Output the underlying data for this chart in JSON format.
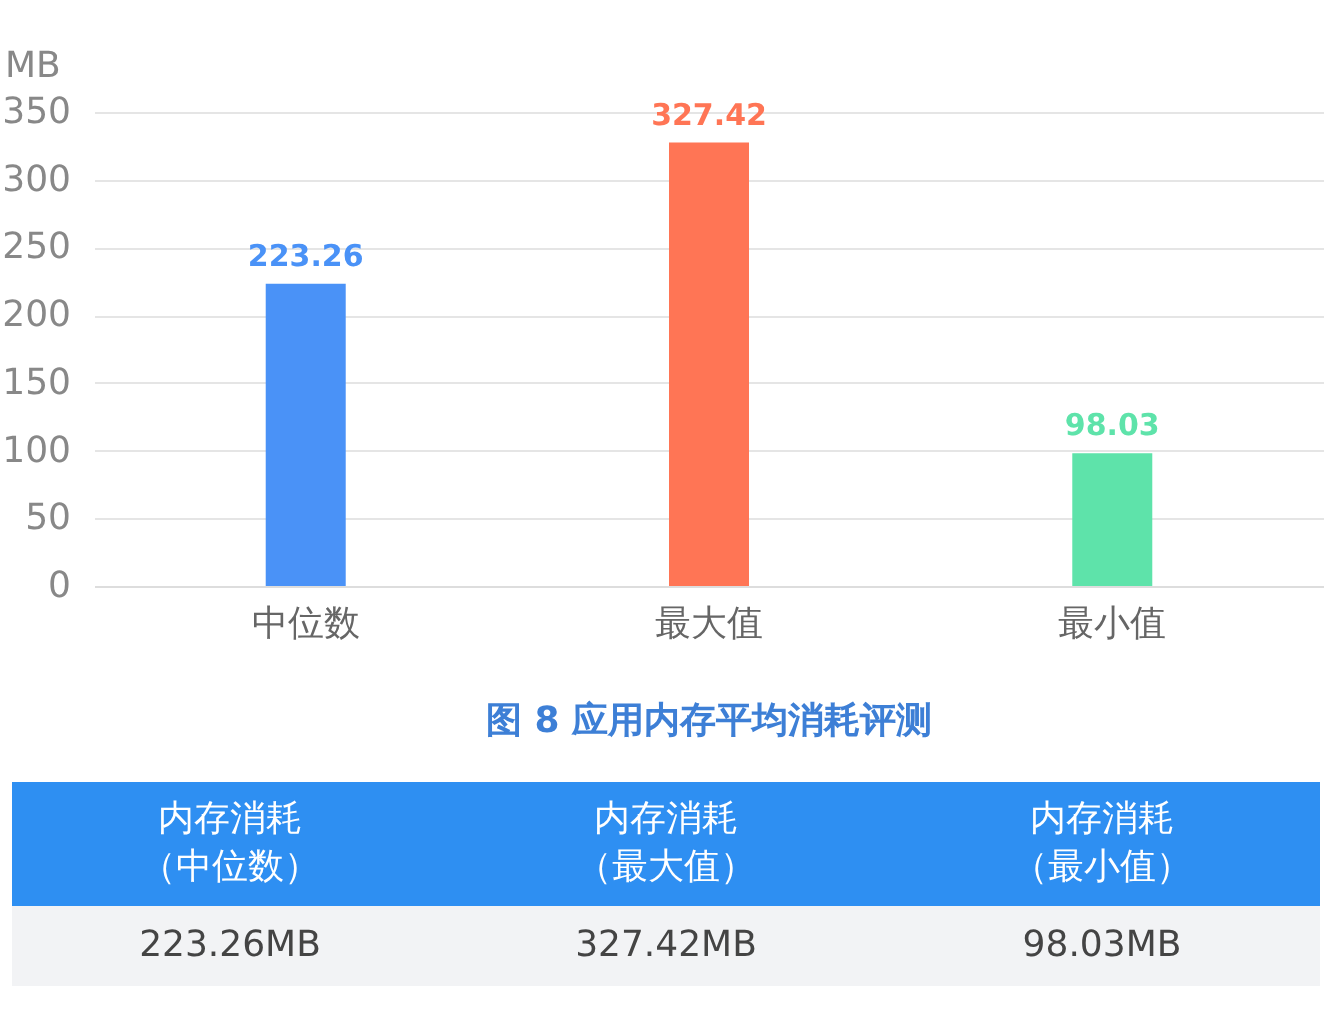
{
  "chart_data": {
    "type": "bar",
    "title": "图 8 应用内存平均消耗评测",
    "ylabel": "MB",
    "categories": [
      "中位数",
      "最大值",
      "最小值"
    ],
    "values": [
      223.26,
      327.42,
      98.03
    ],
    "colors": [
      "#4a92f7",
      "#ff7555",
      "#5ee3aa"
    ],
    "ylim": [
      0,
      350
    ],
    "yticks": [
      0,
      50,
      100,
      150,
      200,
      250,
      300,
      350
    ],
    "grid": "y",
    "data_labels": true,
    "annotations": [
      "内存消耗",
      "内存消耗",
      "内存消耗",
      "（中位数）",
      "（最大值）",
      "（最小值）",
      "223.26MB",
      "327.42MB",
      "98.03MB"
    ]
  }
}
